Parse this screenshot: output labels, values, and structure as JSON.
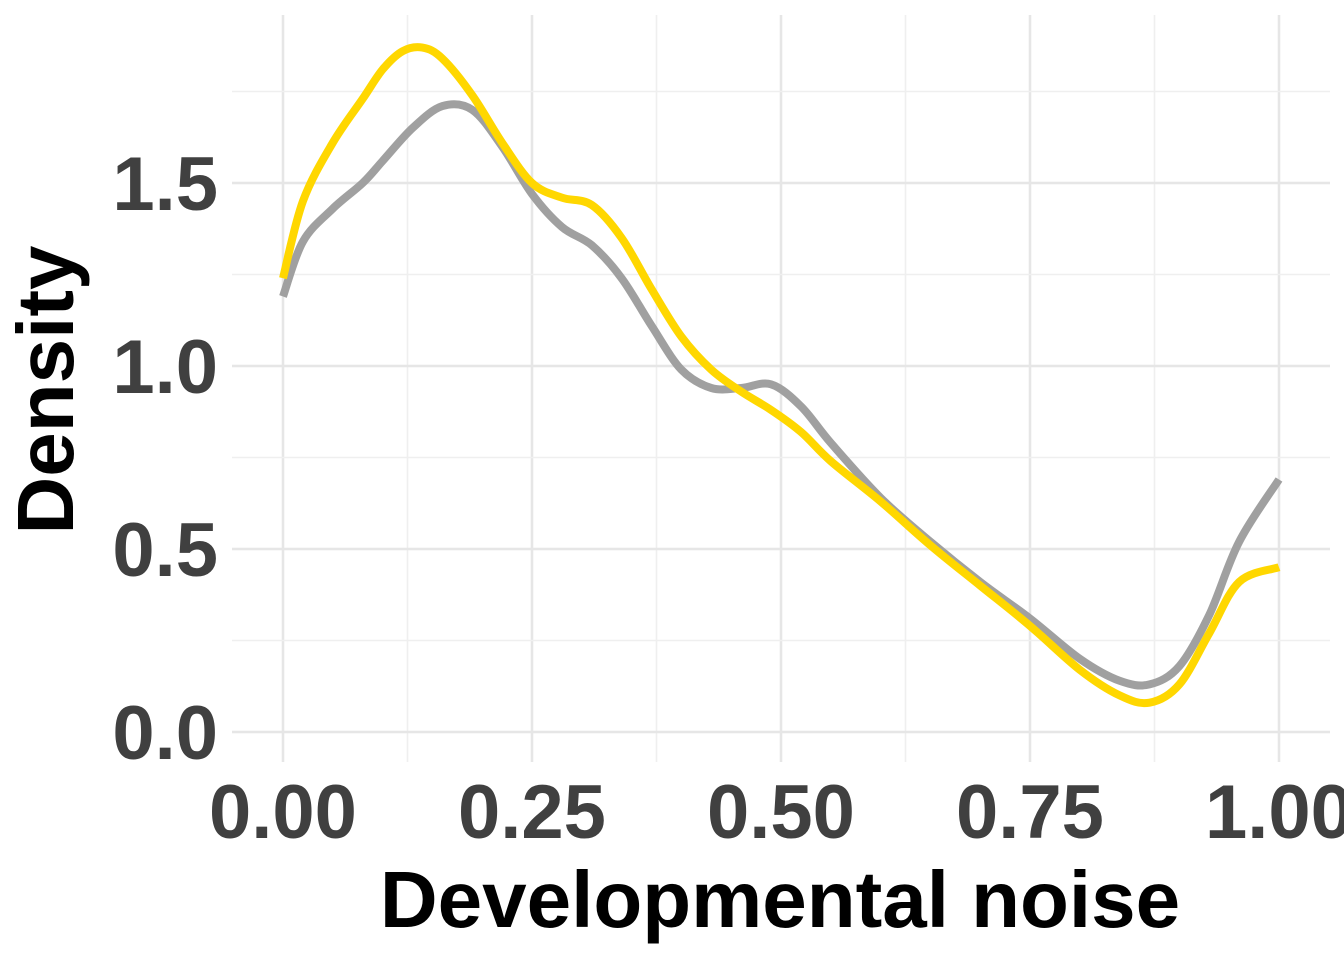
{
  "chart_data": {
    "type": "line",
    "title": "",
    "xlabel": "Developmental noise",
    "ylabel": "Density",
    "xlim": [
      0,
      1
    ],
    "ylim": [
      0,
      1.9
    ],
    "x_ticks": [
      0,
      0.25,
      0.5,
      0.75,
      1.0
    ],
    "x_tick_labels": [
      "0.00",
      "0.25",
      "0.50",
      "0.75",
      "1.00"
    ],
    "y_ticks": [
      0,
      0.5,
      1.0,
      1.5
    ],
    "y_tick_labels": [
      "0.0",
      "0.5",
      "1.0",
      "1.5"
    ],
    "grid": true,
    "legend": "none",
    "series": [
      {
        "color": "#a0a0a0",
        "x": [
          0.0,
          0.02,
          0.05,
          0.08,
          0.1,
          0.13,
          0.16,
          0.19,
          0.22,
          0.25,
          0.28,
          0.31,
          0.34,
          0.37,
          0.4,
          0.43,
          0.46,
          0.49,
          0.52,
          0.55,
          0.6,
          0.65,
          0.7,
          0.75,
          0.8,
          0.84,
          0.87,
          0.9,
          0.93,
          0.96,
          1.0
        ],
        "y": [
          1.19,
          1.34,
          1.43,
          1.5,
          1.56,
          1.65,
          1.71,
          1.7,
          1.6,
          1.47,
          1.38,
          1.33,
          1.24,
          1.11,
          0.99,
          0.94,
          0.94,
          0.95,
          0.89,
          0.79,
          0.64,
          0.52,
          0.41,
          0.31,
          0.2,
          0.14,
          0.13,
          0.18,
          0.32,
          0.52,
          0.69
        ]
      },
      {
        "color": "#ffd700",
        "x": [
          0.0,
          0.02,
          0.05,
          0.08,
          0.1,
          0.12,
          0.14,
          0.16,
          0.19,
          0.22,
          0.25,
          0.28,
          0.31,
          0.34,
          0.37,
          0.4,
          0.43,
          0.46,
          0.49,
          0.52,
          0.55,
          0.6,
          0.65,
          0.7,
          0.75,
          0.8,
          0.84,
          0.87,
          0.9,
          0.93,
          0.96,
          1.0
        ],
        "y": [
          1.24,
          1.45,
          1.61,
          1.73,
          1.81,
          1.86,
          1.87,
          1.84,
          1.74,
          1.61,
          1.5,
          1.46,
          1.44,
          1.35,
          1.21,
          1.08,
          0.99,
          0.93,
          0.88,
          0.82,
          0.74,
          0.63,
          0.51,
          0.4,
          0.29,
          0.17,
          0.1,
          0.08,
          0.13,
          0.27,
          0.41,
          0.45
        ]
      }
    ]
  }
}
